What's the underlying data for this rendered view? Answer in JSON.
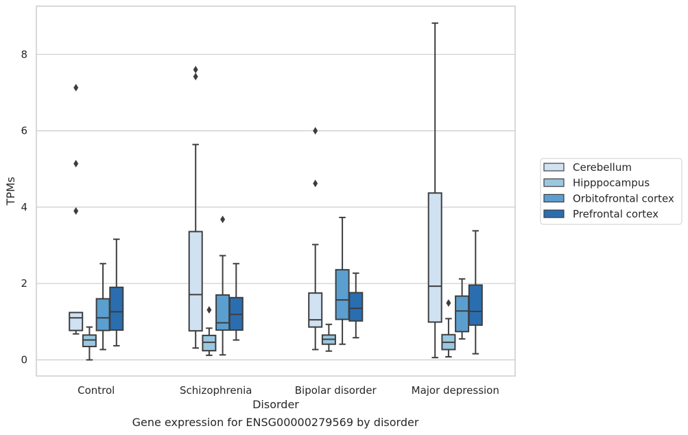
{
  "caption": "Gene expression for ENSG00000279569 by disorder",
  "chart_data": {
    "type": "box",
    "xlabel": "Disorder",
    "ylabel": "TPMs",
    "ylim": [
      -0.4,
      9.25
    ],
    "yticks": [
      0,
      2,
      4,
      6,
      8
    ],
    "grid": "horizontal",
    "legend_position": "right",
    "categories": [
      "Control",
      "Schizophrenia",
      "Bipolar disorder",
      "Major depression"
    ],
    "series": [
      {
        "name": "Cerebellum",
        "color": "#d0e1f2",
        "boxes": [
          {
            "whislo": 0.68,
            "q1": 0.77,
            "med": 1.1,
            "q3": 1.24,
            "whishi": 1.24,
            "fliers": [
              3.9,
              5.14,
              7.13
            ]
          },
          {
            "whislo": 0.31,
            "q1": 0.76,
            "med": 1.71,
            "q3": 3.36,
            "whishi": 5.64,
            "fliers": [
              7.42,
              7.6
            ]
          },
          {
            "whislo": 0.27,
            "q1": 0.86,
            "med": 1.05,
            "q3": 1.75,
            "whishi": 3.02,
            "fliers": [
              4.62,
              6.0
            ]
          },
          {
            "whislo": 0.06,
            "q1": 0.99,
            "med": 1.93,
            "q3": 4.37,
            "whishi": 8.82,
            "fliers": []
          }
        ]
      },
      {
        "name": "Hipppocampus",
        "color": "#9ac8e0",
        "boxes": [
          {
            "whislo": 0.0,
            "q1": 0.35,
            "med": 0.52,
            "q3": 0.65,
            "whishi": 0.86,
            "fliers": []
          },
          {
            "whislo": 0.12,
            "q1": 0.24,
            "med": 0.46,
            "q3": 0.64,
            "whishi": 0.83,
            "fliers": [
              1.31
            ]
          },
          {
            "whislo": 0.23,
            "q1": 0.41,
            "med": 0.54,
            "q3": 0.65,
            "whishi": 0.93,
            "fliers": []
          },
          {
            "whislo": 0.08,
            "q1": 0.27,
            "med": 0.46,
            "q3": 0.66,
            "whishi": 1.08,
            "fliers": [
              1.49
            ]
          }
        ]
      },
      {
        "name": "Orbitofrontal cortex",
        "color": "#5a9fcf",
        "boxes": [
          {
            "whislo": 0.27,
            "q1": 0.77,
            "med": 1.1,
            "q3": 1.6,
            "whishi": 2.52,
            "fliers": []
          },
          {
            "whislo": 0.13,
            "q1": 0.78,
            "med": 0.97,
            "q3": 1.7,
            "whishi": 2.73,
            "fliers": [
              3.68
            ]
          },
          {
            "whislo": 0.41,
            "q1": 1.06,
            "med": 1.57,
            "q3": 2.36,
            "whishi": 3.73,
            "fliers": []
          },
          {
            "whislo": 0.55,
            "q1": 0.74,
            "med": 1.28,
            "q3": 1.67,
            "whishi": 2.12,
            "fliers": []
          }
        ]
      },
      {
        "name": "Prefrontal cortex",
        "color": "#2b6eb0",
        "boxes": [
          {
            "whislo": 0.37,
            "q1": 0.78,
            "med": 1.26,
            "q3": 1.9,
            "whishi": 3.16,
            "fliers": []
          },
          {
            "whislo": 0.52,
            "q1": 0.78,
            "med": 1.19,
            "q3": 1.63,
            "whishi": 2.52,
            "fliers": []
          },
          {
            "whislo": 0.58,
            "q1": 1.02,
            "med": 1.35,
            "q3": 1.76,
            "whishi": 2.27,
            "fliers": []
          },
          {
            "whislo": 0.16,
            "q1": 0.91,
            "med": 1.27,
            "q3": 1.96,
            "whishi": 3.38,
            "fliers": []
          }
        ]
      }
    ]
  }
}
